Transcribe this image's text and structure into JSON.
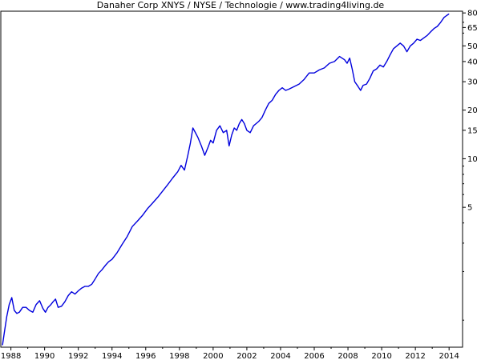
{
  "chart_data": {
    "type": "line",
    "title": "Danaher Corp XNYS / NYSE / Technologie / www.trading4living.de",
    "xlabel": "",
    "ylabel": "",
    "y_scale": "log",
    "ylim": [
      0.68,
      82
    ],
    "xlim": [
      1987.4,
      2014.8
    ],
    "grid": false,
    "x_ticks": [
      1988,
      1990,
      1992,
      1994,
      1996,
      1998,
      2000,
      2002,
      2004,
      2006,
      2008,
      2010,
      2012,
      2014
    ],
    "x_tick_labels": [
      "1988",
      "1990",
      "1992",
      "1994",
      "1996",
      "1998",
      "2000",
      "2002",
      "2004",
      "2006",
      "2008",
      "2010",
      "2012",
      "2014"
    ],
    "y_ticks": [
      5,
      10,
      15,
      20,
      30,
      40,
      50,
      65,
      80
    ],
    "y_tick_labels": [
      "5",
      "10",
      "15",
      "20",
      "30",
      "40",
      "50",
      "65",
      "80"
    ],
    "series": [
      {
        "color": "#0000dd",
        "x": [
          1987.5,
          1987.62,
          1987.75,
          1987.9,
          1988.05,
          1988.2,
          1988.35,
          1988.5,
          1988.7,
          1988.9,
          1989.1,
          1989.3,
          1989.5,
          1989.7,
          1989.9,
          1990.05,
          1990.2,
          1990.35,
          1990.5,
          1990.65,
          1990.8,
          1991.0,
          1991.2,
          1991.4,
          1991.6,
          1991.8,
          1992.0,
          1992.2,
          1992.4,
          1992.6,
          1992.8,
          1993.0,
          1993.2,
          1993.4,
          1993.6,
          1993.8,
          1994.0,
          1994.3,
          1994.6,
          1994.9,
          1995.2,
          1995.5,
          1995.8,
          1996.1,
          1996.4,
          1996.7,
          1997.0,
          1997.3,
          1997.6,
          1997.9,
          1998.1,
          1998.3,
          1998.5,
          1998.65,
          1998.8,
          1998.9,
          1999.1,
          1999.3,
          1999.5,
          1999.7,
          1999.85,
          2000.0,
          2000.2,
          2000.4,
          2000.6,
          2000.8,
          2000.95,
          2001.1,
          2001.25,
          2001.4,
          2001.55,
          2001.7,
          2001.85,
          2002.0,
          2002.2,
          2002.4,
          2002.55,
          2002.7,
          2002.9,
          2003.1,
          2003.3,
          2003.5,
          2003.7,
          2003.9,
          2004.1,
          2004.3,
          2004.5,
          2004.8,
          2005.1,
          2005.4,
          2005.7,
          2006.0,
          2006.3,
          2006.6,
          2006.9,
          2007.2,
          2007.5,
          2007.8,
          2007.95,
          2008.1,
          2008.25,
          2008.4,
          2008.6,
          2008.75,
          2008.9,
          2009.1,
          2009.3,
          2009.5,
          2009.7,
          2009.9,
          2010.1,
          2010.3,
          2010.5,
          2010.7,
          2010.9,
          2011.1,
          2011.3,
          2011.5,
          2011.7,
          2011.9,
          2012.1,
          2012.3,
          2012.5,
          2012.7,
          2012.9,
          2013.1,
          2013.3,
          2013.5,
          2013.7,
          2013.85,
          2014.0
        ],
        "values": [
          0.7,
          0.85,
          1.05,
          1.25,
          1.38,
          1.15,
          1.1,
          1.12,
          1.2,
          1.2,
          1.15,
          1.12,
          1.25,
          1.32,
          1.18,
          1.12,
          1.2,
          1.24,
          1.3,
          1.35,
          1.2,
          1.22,
          1.3,
          1.42,
          1.5,
          1.45,
          1.52,
          1.58,
          1.62,
          1.62,
          1.67,
          1.8,
          1.95,
          2.05,
          2.18,
          2.3,
          2.38,
          2.62,
          2.95,
          3.3,
          3.8,
          4.1,
          4.45,
          4.9,
          5.3,
          5.75,
          6.3,
          6.9,
          7.6,
          8.3,
          9.1,
          8.5,
          10.5,
          12.5,
          15.5,
          14.8,
          13.5,
          12.0,
          10.5,
          11.8,
          13.0,
          12.5,
          15.0,
          16.0,
          14.5,
          15.0,
          12.0,
          14.0,
          15.5,
          15.0,
          16.5,
          17.5,
          16.5,
          15.0,
          14.5,
          16.0,
          16.5,
          17.0,
          18.0,
          20.0,
          22.0,
          23.0,
          25.0,
          26.5,
          27.5,
          26.5,
          27.0,
          28.0,
          29.0,
          31.0,
          34.0,
          34.0,
          35.5,
          36.5,
          39.0,
          40.0,
          43.0,
          41.0,
          39.0,
          42.0,
          36.0,
          30.0,
          28.0,
          26.5,
          28.5,
          29.0,
          31.5,
          35.0,
          36.0,
          38.0,
          37.0,
          40.0,
          44.0,
          48.0,
          50.0,
          52.0,
          50.0,
          46.0,
          50.0,
          52.0,
          55.0,
          54.0,
          56.0,
          58.0,
          61.0,
          64.0,
          66.0,
          70.0,
          75.0,
          77.0,
          79.0
        ]
      }
    ]
  }
}
